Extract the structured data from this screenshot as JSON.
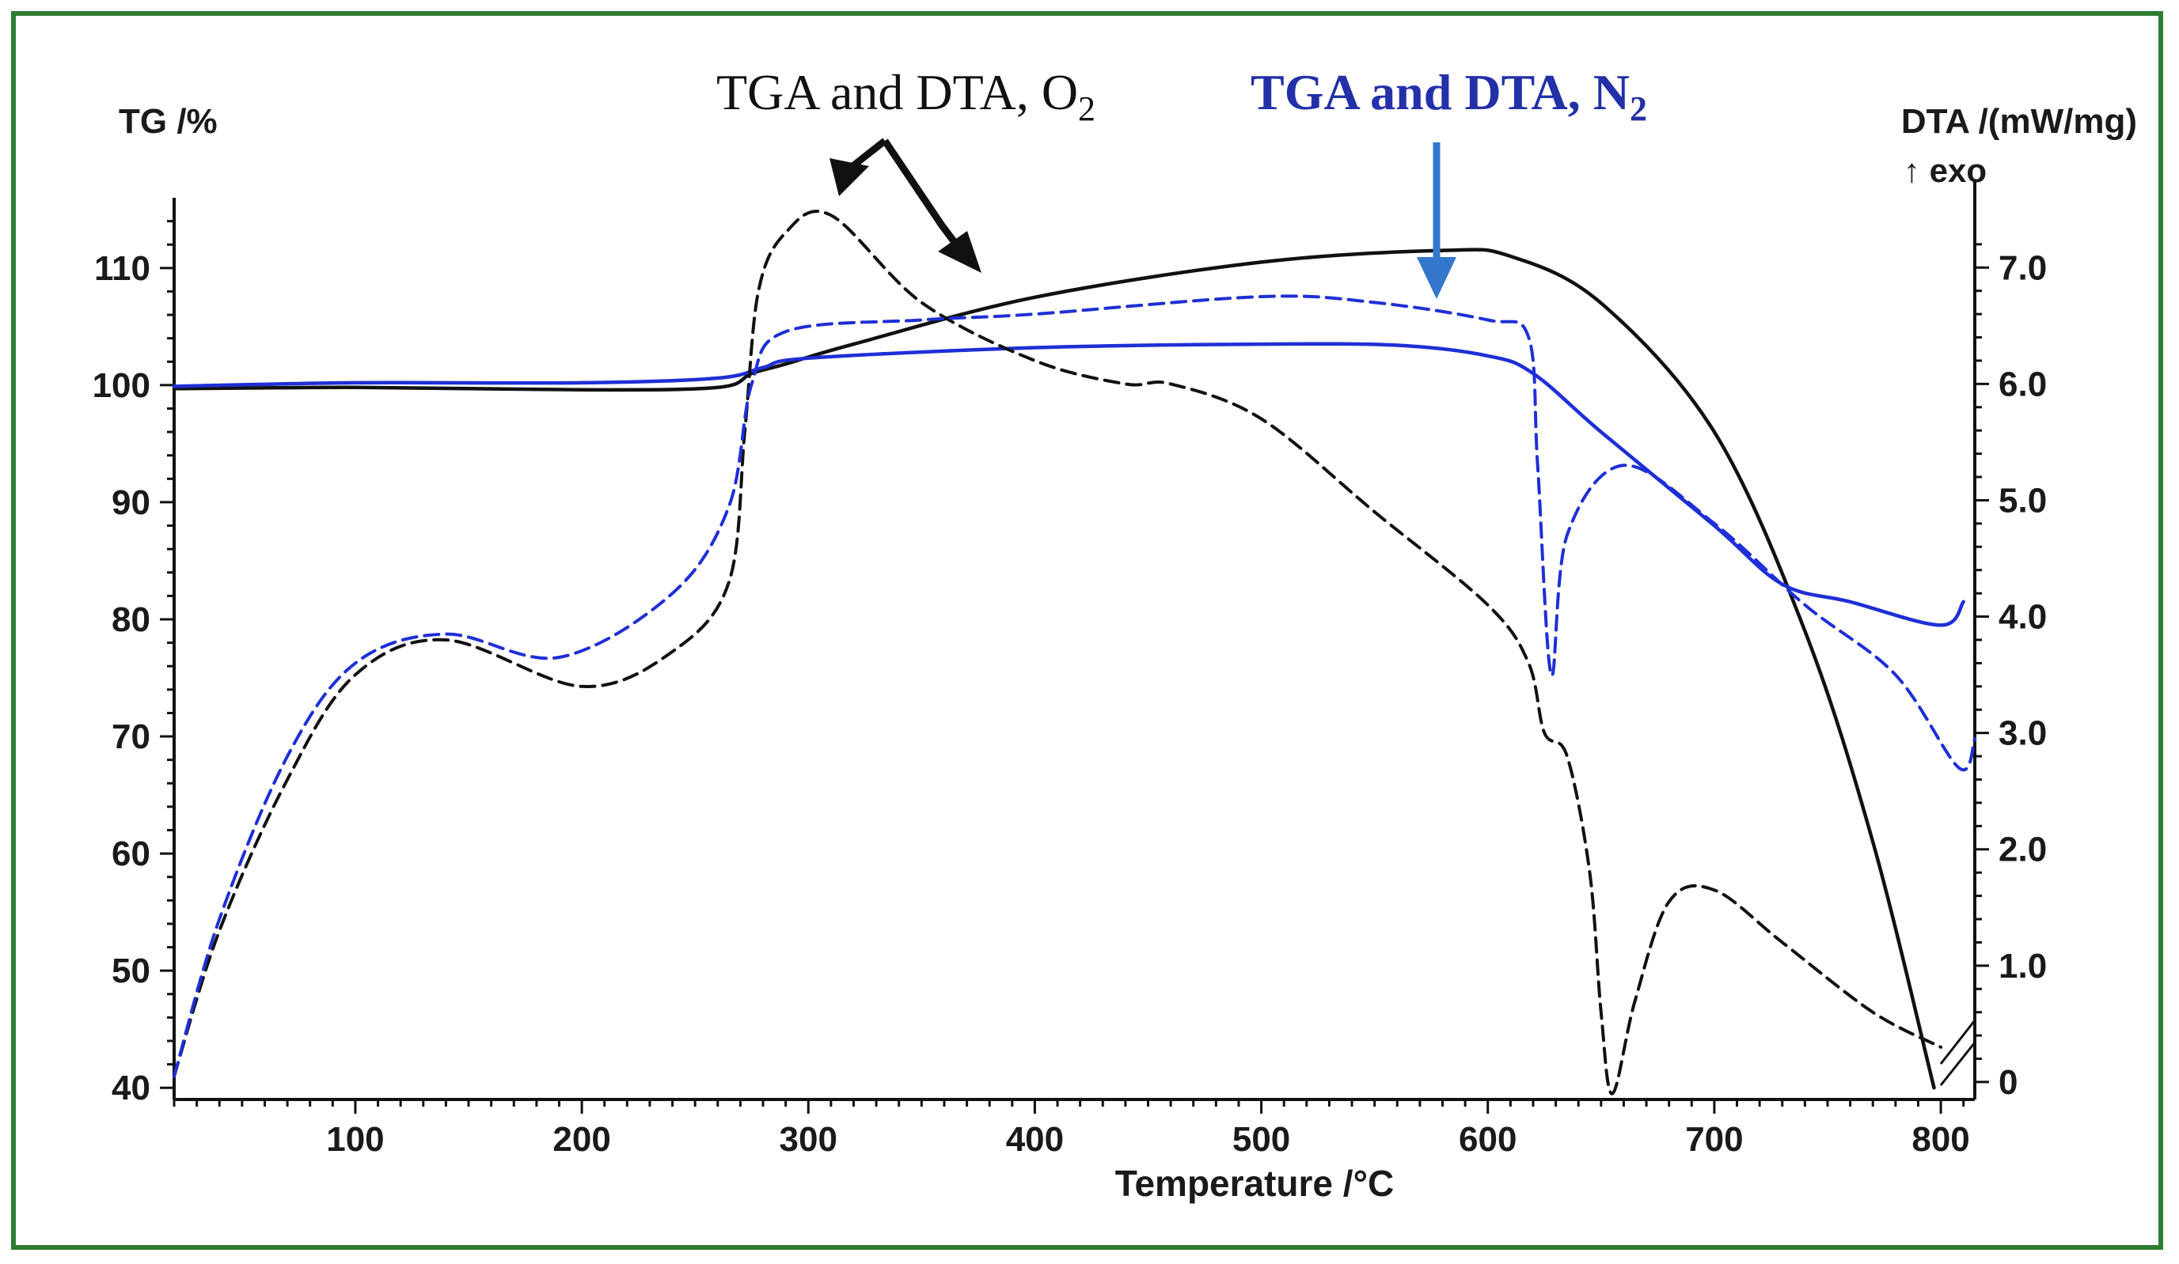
{
  "chart_data": {
    "type": "line",
    "title": "",
    "xlabel": "Temperature /°C",
    "ylabel_left": "TG /%",
    "ylabel_right": "DTA /(mW/mg)",
    "ylabel_right_note": "↑ exo",
    "xlim": [
      20,
      815
    ],
    "ylim_left": [
      39,
      116
    ],
    "ylim_right": [
      -0.15,
      7.6
    ],
    "xticks": [
      100,
      200,
      300,
      400,
      500,
      600,
      700,
      800
    ],
    "yticks_left": [
      40,
      50,
      60,
      70,
      80,
      90,
      100,
      110
    ],
    "yticks_right": [
      {
        "value": 0,
        "label": "0"
      },
      {
        "value": 1,
        "label": "1.0"
      },
      {
        "value": 2,
        "label": "2.0"
      },
      {
        "value": 3,
        "label": "3.0"
      },
      {
        "value": 4,
        "label": "4.0"
      },
      {
        "value": 5,
        "label": "5.0"
      },
      {
        "value": 6,
        "label": "6.0"
      },
      {
        "value": 7,
        "label": "7.0"
      }
    ],
    "annotations": {
      "o2": {
        "text": "TGA and DTA, O",
        "subscript": "2",
        "color": "#111111"
      },
      "n2": {
        "text": "TGA and DTA, N",
        "subscript": "2",
        "color": "#2330a8"
      }
    },
    "series": [
      {
        "name": "TGA, O2",
        "axis": "left",
        "style": "solid",
        "color": "#111111",
        "x": [
          20,
          100,
          200,
          260,
          275,
          290,
          320,
          400,
          500,
          580,
          610,
          650,
          700,
          740,
          770,
          797
        ],
        "y": [
          99.7,
          99.8,
          99.6,
          99.8,
          101,
          101.8,
          103.5,
          107.5,
          110.5,
          111.5,
          111,
          107,
          96,
          79,
          61,
          40
        ]
      },
      {
        "name": "TGA, N2",
        "axis": "left",
        "style": "solid",
        "color": "#1f2fd6",
        "x": [
          20,
          100,
          200,
          260,
          280,
          300,
          400,
          500,
          560,
          600,
          620,
          650,
          700,
          730,
          760,
          800,
          810
        ],
        "y": [
          99.9,
          100.2,
          100.2,
          100.6,
          101.5,
          102.3,
          103.2,
          103.5,
          103.4,
          102.5,
          101,
          96,
          88,
          83,
          81.5,
          79.5,
          81.5
        ]
      },
      {
        "name": "DTA, O2",
        "axis": "right",
        "style": "dashed",
        "color": "#111111",
        "x": [
          20,
          40,
          70,
          100,
          140,
          200,
          240,
          265,
          272,
          278,
          290,
          310,
          350,
          400,
          440,
          460,
          500,
          550,
          600,
          618,
          625,
          635,
          645,
          650,
          655,
          665,
          680,
          700,
          730,
          770,
          800
        ],
        "y": [
          0.05,
          1.3,
          2.6,
          3.5,
          3.8,
          3.4,
          3.7,
          4.3,
          5.6,
          6.8,
          7.3,
          7.45,
          6.7,
          6.2,
          6.0,
          6.0,
          5.7,
          4.9,
          4.1,
          3.6,
          3.0,
          2.8,
          1.8,
          0.6,
          -0.1,
          0.7,
          1.55,
          1.65,
          1.2,
          0.6,
          0.3
        ]
      },
      {
        "name": "DTA, N2",
        "axis": "right",
        "style": "dashed",
        "color": "#1f2fd6",
        "x": [
          20,
          40,
          70,
          100,
          140,
          190,
          240,
          265,
          275,
          290,
          350,
          400,
          500,
          550,
          600,
          618,
          622,
          628,
          635,
          660,
          700,
          740,
          780,
          808,
          815
        ],
        "y": [
          0.05,
          1.4,
          2.8,
          3.6,
          3.85,
          3.65,
          4.2,
          4.95,
          6.0,
          6.45,
          6.55,
          6.6,
          6.75,
          6.7,
          6.55,
          6.4,
          5.3,
          3.5,
          4.7,
          5.3,
          4.8,
          4.1,
          3.5,
          2.7,
          2.95
        ]
      }
    ]
  }
}
